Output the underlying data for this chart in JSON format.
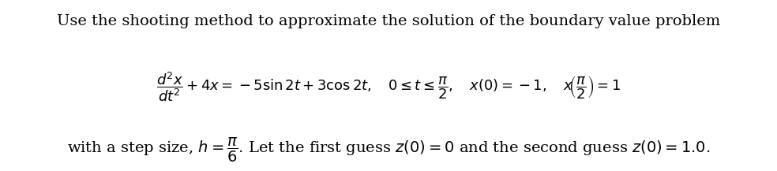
{
  "line1": "Use the shooting method to approximate the solution of the boundary value problem",
  "line2_left": "$\\dfrac{d^2x}{dt^2} + 4x = -5\\sin 2t + 3\\cos 2t, \\quad 0 \\leq t \\leq \\dfrac{\\pi}{2}, \\quad x(0) = -1, \\quad x\\!\\left(\\dfrac{\\pi}{2}\\right) = 1$",
  "line3": "with a step size, $h = \\dfrac{\\pi}{6}$. Let the first guess $z(0) = 0$ and the second guess $z(0) = 1.0$.",
  "font_size_line1": 14,
  "font_size_line2": 13,
  "font_size_line3": 14,
  "bg_color": "#ffffff",
  "text_color": "#000000"
}
